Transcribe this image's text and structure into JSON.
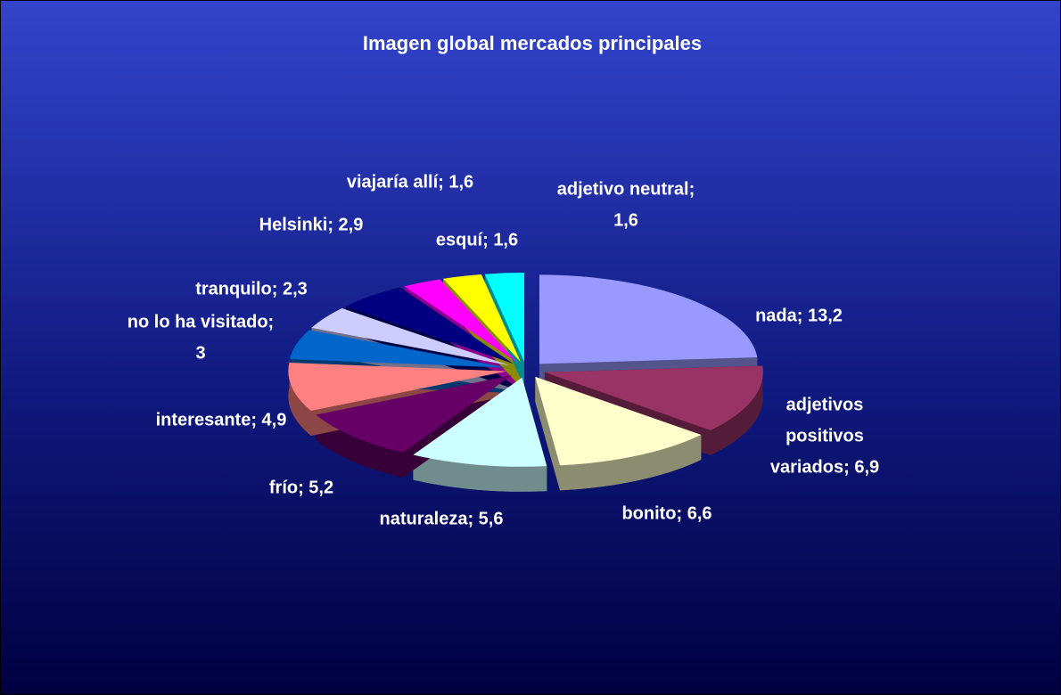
{
  "chart_data": {
    "type": "pie",
    "title": "Imagen global mercados principales",
    "values": [
      13.2,
      6.9,
      6.6,
      5.6,
      5.2,
      4.9,
      3,
      2.3,
      2.9,
      1.6,
      1.6,
      1.6
    ],
    "value_labels": [
      [
        "nada; 13,2"
      ],
      [
        "adjetivos",
        "positivos",
        "variados; 6,9"
      ],
      [
        "bonito; 6,6"
      ],
      [
        "naturaleza; 5,6"
      ],
      [
        "frío; 5,2"
      ],
      [
        "interesante; 4,9"
      ],
      [
        "no lo ha visitado;",
        "3"
      ],
      [
        "tranquilo; 2,3"
      ],
      [
        "Helsinki; 2,9"
      ],
      [
        "viajaría allí; 1,6"
      ],
      [
        "esquí; 1,6"
      ],
      [
        "adjetivo neutral;",
        "1,6"
      ]
    ],
    "colors": [
      "#9999ff",
      "#993366",
      "#ffffcc",
      "#ccffff",
      "#660066",
      "#ff8080",
      "#0066cc",
      "#ccccff",
      "#000080",
      "#ff00ff",
      "#ffff00",
      "#00ffff"
    ]
  }
}
